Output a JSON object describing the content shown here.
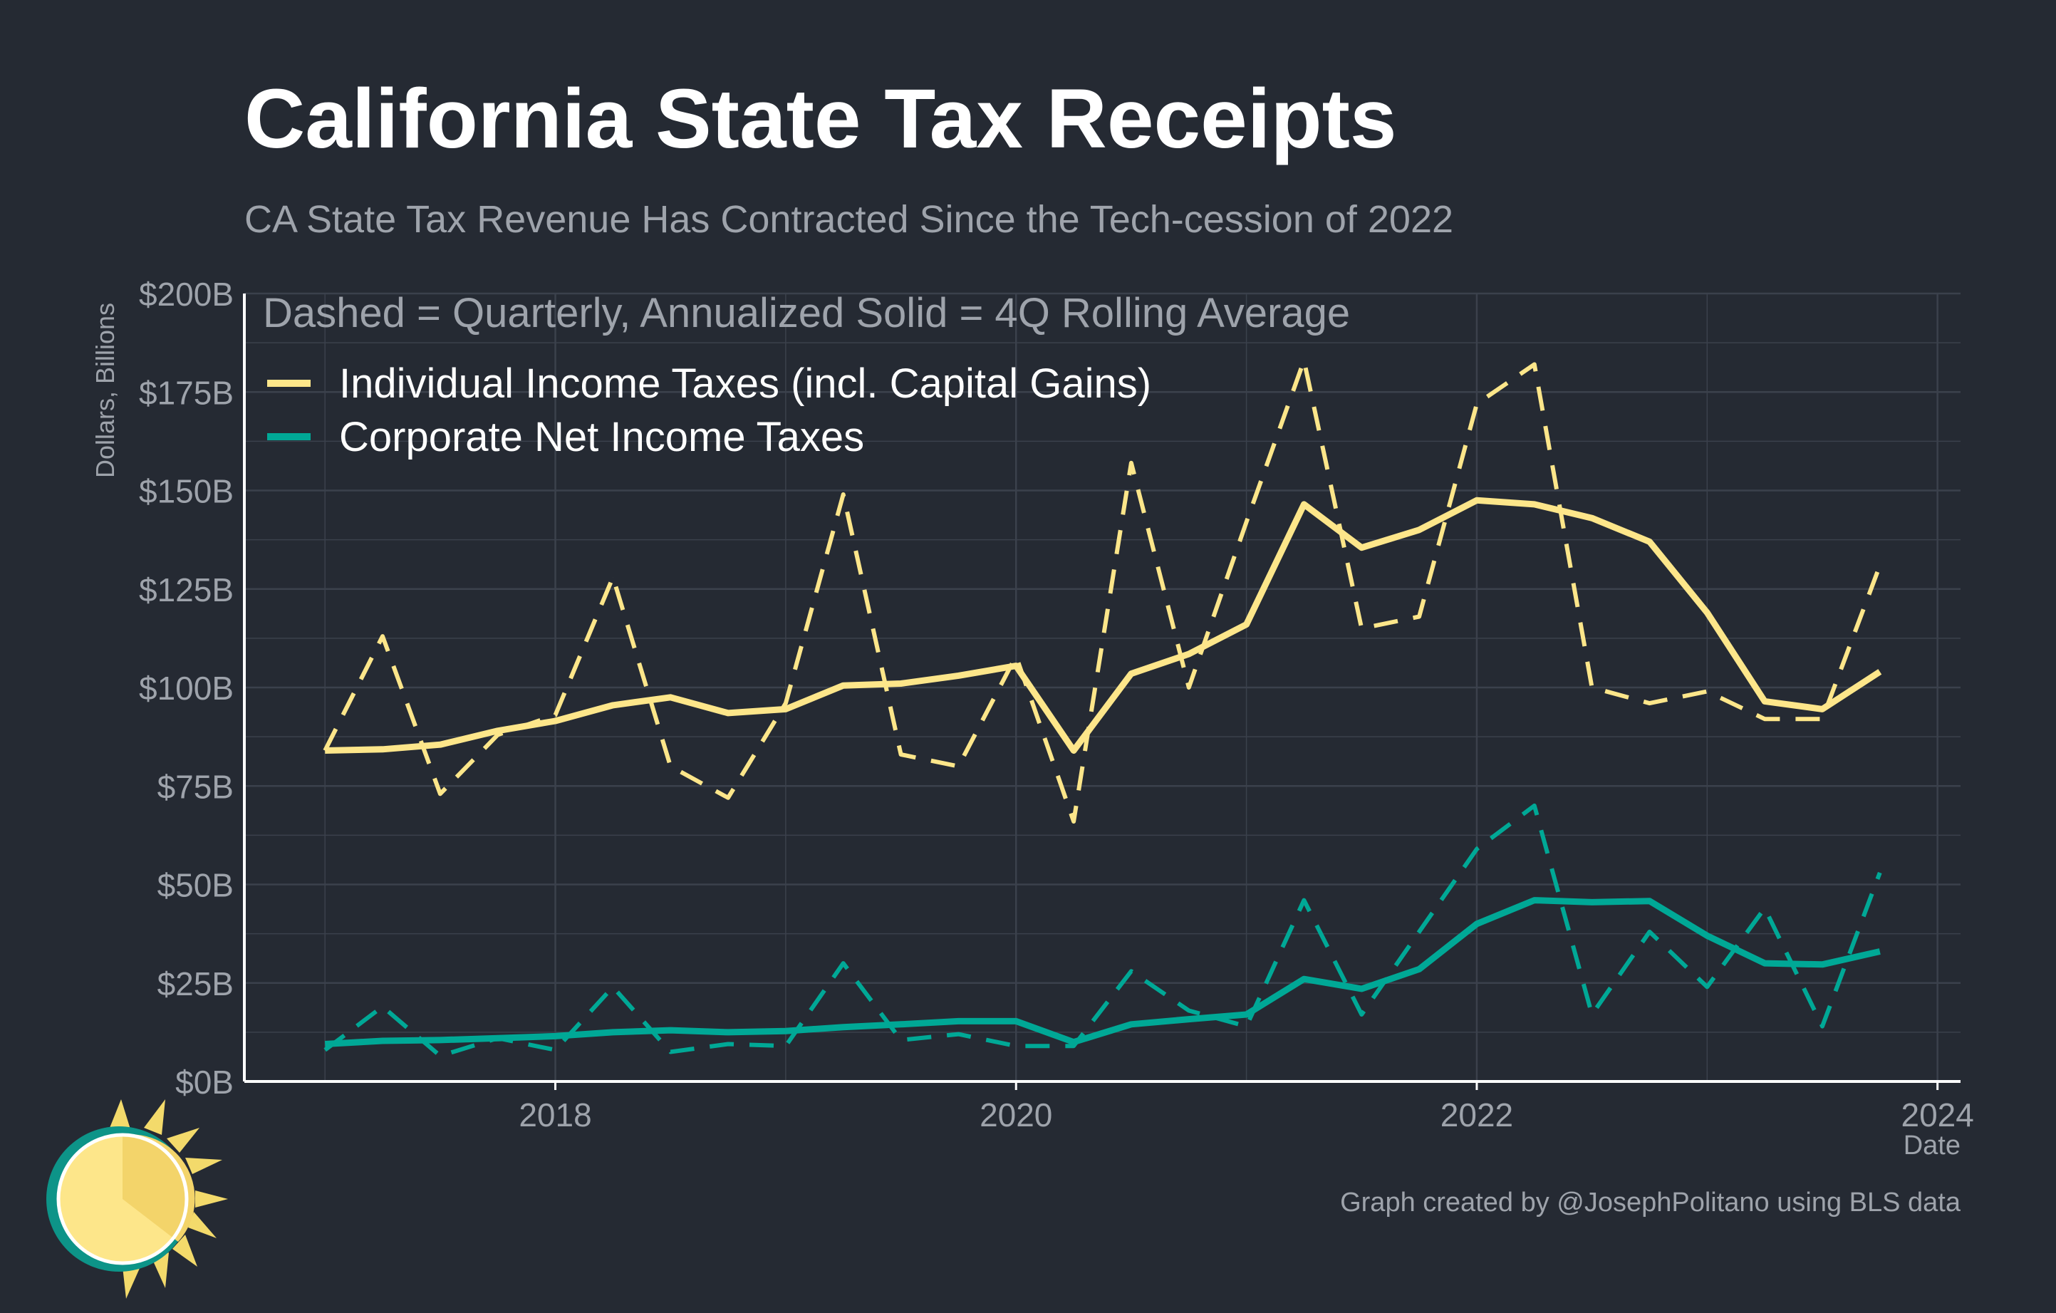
{
  "colors": {
    "background": "#252a33",
    "individual": "#fde68a",
    "corporate": "#00a896",
    "grid": "#3b414c",
    "axis": "#ffffff",
    "tick_text": "#9ea3ab",
    "title_text": "#ffffff",
    "subtitle_text": "#9ea3ab"
  },
  "logo": {
    "icon": "sun-logo-icon"
  },
  "chart_data": {
    "type": "line",
    "title": "California State Tax Receipts",
    "subtitle": "CA State Tax Revenue Has Contracted Since the Tech-cession of 2022",
    "annotation": "Dashed = Quarterly, Annualized Solid = 4Q Rolling Average",
    "xlabel": "Date",
    "ylabel": "Dollars, Billions",
    "caption": "Graph created by @JosephPolitano using BLS data",
    "xlim": [
      2016.65,
      2024.1
    ],
    "ylim": [
      0,
      200
    ],
    "x_ticks": [
      {
        "value": 2018,
        "label": "2018"
      },
      {
        "value": 2020,
        "label": "2020"
      },
      {
        "value": 2022,
        "label": "2022"
      },
      {
        "value": 2024,
        "label": "2024"
      }
    ],
    "y_ticks": [
      {
        "value": 0,
        "label": "$0B"
      },
      {
        "value": 25,
        "label": "$25B"
      },
      {
        "value": 50,
        "label": "$50B"
      },
      {
        "value": 75,
        "label": "$75B"
      },
      {
        "value": 100,
        "label": "$100B"
      },
      {
        "value": 125,
        "label": "$125B"
      },
      {
        "value": 150,
        "label": "$150B"
      },
      {
        "value": 175,
        "label": "$175B"
      },
      {
        "value": 200,
        "label": "$200B"
      }
    ],
    "grid": true,
    "legend": {
      "placement": "top-left",
      "entries": [
        {
          "label": "Individual Income Taxes (incl. Capital Gains)",
          "color": "#fde68a"
        },
        {
          "label": "Corporate Net Income Taxes",
          "color": "#00a896"
        }
      ]
    },
    "x": [
      2017.0,
      2017.25,
      2017.5,
      2017.75,
      2018.0,
      2018.25,
      2018.5,
      2018.75,
      2019.0,
      2019.25,
      2019.5,
      2019.75,
      2020.0,
      2020.25,
      2020.5,
      2020.75,
      2021.0,
      2021.25,
      2021.5,
      2021.75,
      2022.0,
      2022.25,
      2022.5,
      2022.75,
      2023.0,
      2023.25,
      2023.5,
      2023.75
    ],
    "series": [
      {
        "name": "Individual Income Taxes (incl. Capital Gains)",
        "style": "dashed",
        "color": "#fde68a",
        "values": [
          84,
          113,
          73,
          88,
          93,
          128,
          80,
          72,
          96,
          149,
          83,
          80,
          108,
          66,
          157,
          100,
          142,
          183,
          115,
          118,
          172,
          182,
          100,
          96,
          99,
          92,
          92,
          131
        ]
      },
      {
        "name": "Individual Income Taxes (incl. Capital Gains)",
        "style": "solid",
        "color": "#fde68a",
        "values": [
          84,
          84.3,
          85.5,
          89,
          91.5,
          95.5,
          97.5,
          93.5,
          94.5,
          100.5,
          101,
          103,
          105.5,
          84,
          103.5,
          108.5,
          116,
          146.5,
          135.5,
          140,
          147.5,
          146.5,
          143,
          137,
          119,
          96.5,
          94.5,
          104
        ]
      },
      {
        "name": "Corporate Net Income Taxes",
        "style": "dashed",
        "color": "#00a896",
        "values": [
          8,
          19,
          6.5,
          11,
          8,
          24,
          7.5,
          9.5,
          9,
          30,
          10.5,
          12,
          9,
          9,
          28,
          18,
          14,
          46,
          17,
          38,
          59,
          70,
          17,
          38,
          24,
          44,
          14,
          53
        ]
      },
      {
        "name": "Corporate Net Income Taxes",
        "style": "solid",
        "color": "#00a896",
        "values": [
          9.5,
          10.3,
          10.5,
          11,
          11.5,
          12.5,
          13,
          12.5,
          12.8,
          13.8,
          14.5,
          15.3,
          15.3,
          10,
          14.5,
          15.8,
          17,
          26,
          23.5,
          28.5,
          40,
          46,
          45.5,
          45.8,
          37,
          30,
          29.7,
          33
        ]
      }
    ]
  }
}
